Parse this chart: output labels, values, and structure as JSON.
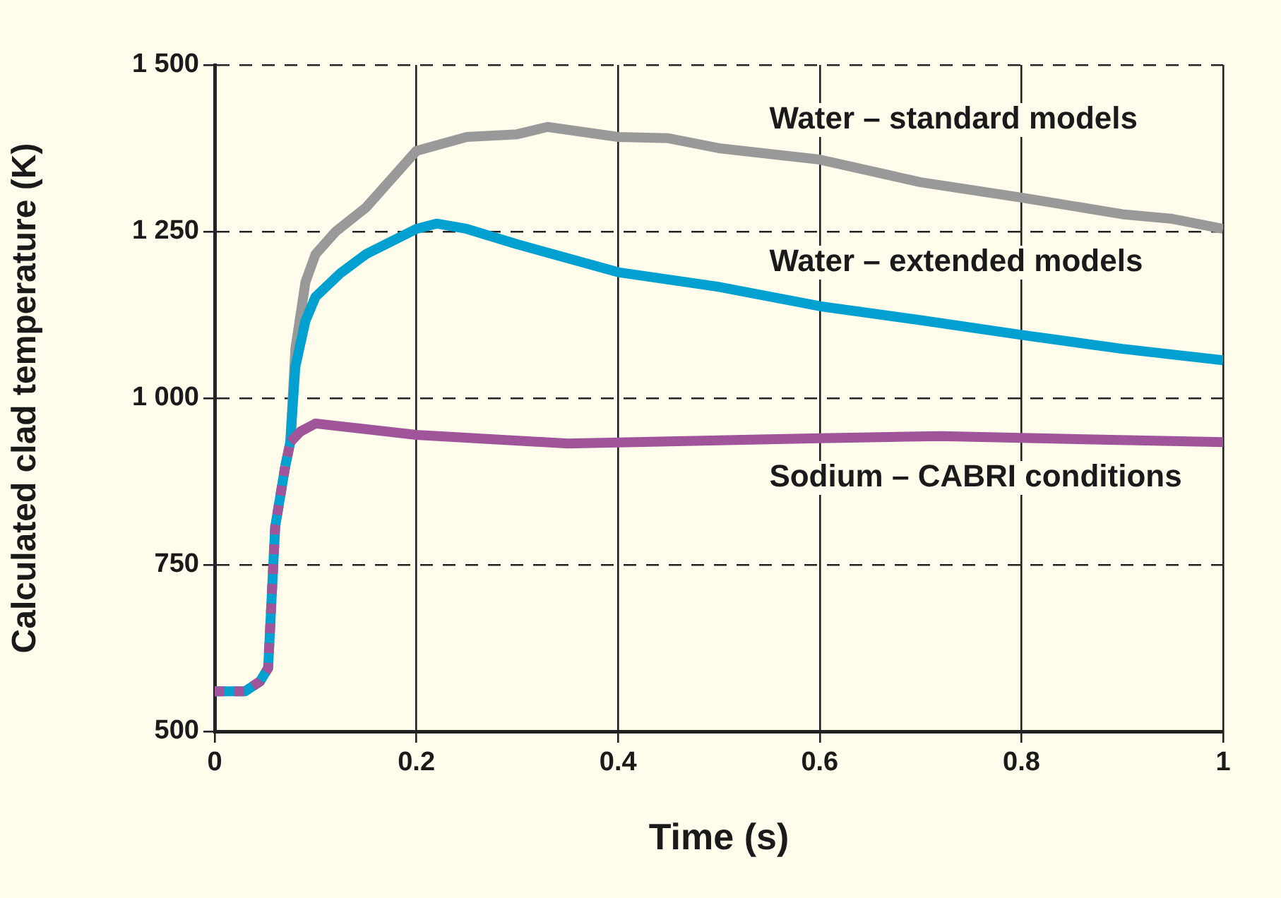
{
  "chart_data": {
    "type": "line",
    "xlabel": "Time (s)",
    "ylabel": "Calculated clad temperature (K)",
    "xlim": [
      0,
      1
    ],
    "xticks": [
      0,
      0.2,
      0.4,
      0.6,
      0.8,
      1
    ],
    "ylim": [
      500,
      1500
    ],
    "yticks": [
      {
        "value": 500,
        "label": "500"
      },
      {
        "value": 750,
        "label": "750"
      },
      {
        "value": 1000,
        "label": "1 000"
      },
      {
        "value": 1250,
        "label": "1 250"
      },
      {
        "value": 1500,
        "label": "1 500"
      }
    ],
    "grid": true,
    "legend": false,
    "marker": "none",
    "line_style": "solid",
    "series": [
      {
        "name": "Water – standard models",
        "color": "#999999",
        "x": [
          0.07,
          0.075,
          0.08,
          0.09,
          0.1,
          0.12,
          0.15,
          0.2,
          0.25,
          0.3,
          0.33,
          0.4,
          0.45,
          0.5,
          0.6,
          0.7,
          0.8,
          0.9,
          0.95,
          1
        ],
        "values": [
          898,
          934,
          1074,
          1174,
          1216,
          1250,
          1286,
          1371,
          1392,
          1396,
          1407,
          1392,
          1390,
          1375,
          1358,
          1324,
          1301,
          1276,
          1269,
          1254
        ]
      },
      {
        "name": "Water – extended models",
        "color": "#00a0d0",
        "x": [
          0,
          0.03,
          0.045,
          0.053,
          0.06,
          0.07,
          0.075,
          0.08,
          0.09,
          0.1,
          0.125,
          0.15,
          0.2,
          0.22,
          0.25,
          0.3,
          0.35,
          0.4,
          0.5,
          0.6,
          0.7,
          0.8,
          0.9,
          1
        ],
        "values": [
          560,
          560,
          575,
          595,
          807,
          898,
          934,
          1047,
          1116,
          1152,
          1188,
          1216,
          1254,
          1262,
          1254,
          1231,
          1210,
          1189,
          1167,
          1138,
          1117,
          1095,
          1074,
          1057
        ]
      },
      {
        "name": "Sodium – CABRI conditions",
        "color": "#a0559a",
        "x": [
          0,
          0.03,
          0.045,
          0.053,
          0.06,
          0.07,
          0.075,
          0.085,
          0.1,
          0.2,
          0.35,
          0.6,
          0.72,
          1
        ],
        "values": [
          560,
          560,
          575,
          595,
          807,
          898,
          934,
          950,
          962,
          945,
          932,
          940,
          943,
          934
        ]
      }
    ]
  }
}
